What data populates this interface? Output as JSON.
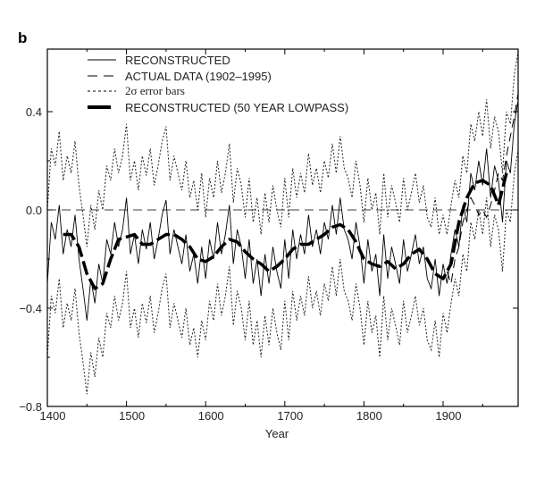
{
  "chart_data": {
    "type": "line",
    "panel_label": "b",
    "xlabel": "Year",
    "ylabel": "",
    "xlim": [
      1400,
      1995
    ],
    "ylim": [
      -0.8,
      0.65
    ],
    "xticks": [
      1400,
      1500,
      1600,
      1700,
      1800,
      1900
    ],
    "xtick_labels": [
      "1400",
      "1500",
      "1600",
      "1700",
      "1800",
      "1900"
    ],
    "yticks": [
      0.4,
      0.0,
      -0.4,
      -0.8
    ],
    "ytick_labels": [
      "0.4",
      "0.0",
      "−0.4",
      "−0.8"
    ],
    "grid": false,
    "legend_position": "top-left",
    "legend": [
      {
        "label": "RECONSTRUCTED",
        "style": "thin-solid"
      },
      {
        "label": "ACTUAL DATA (1902–1995)",
        "style": "long-dash"
      },
      {
        "label": "2σ error bars",
        "style": "dotted"
      },
      {
        "label": "RECONSTRUCTED (50 YEAR LOWPASS)",
        "style": "thick-dash"
      }
    ],
    "reconstructed": {
      "start": 1400,
      "step": 5,
      "values": [
        -0.3,
        -0.05,
        -0.12,
        0.02,
        -0.18,
        -0.08,
        -0.15,
        -0.02,
        -0.2,
        -0.32,
        -0.45,
        -0.28,
        -0.38,
        -0.22,
        -0.3,
        -0.12,
        -0.18,
        -0.05,
        -0.15,
        -0.08,
        0.05,
        -0.18,
        -0.1,
        -0.22,
        -0.08,
        -0.16,
        -0.05,
        -0.2,
        -0.12,
        -0.02,
        0.04,
        -0.18,
        -0.08,
        -0.15,
        -0.22,
        -0.1,
        -0.25,
        -0.18,
        -0.3,
        -0.15,
        -0.28,
        -0.12,
        -0.2,
        -0.05,
        -0.18,
        -0.1,
        0.02,
        -0.22,
        -0.08,
        -0.15,
        -0.28,
        -0.12,
        -0.3,
        -0.2,
        -0.35,
        -0.18,
        -0.3,
        -0.15,
        -0.25,
        -0.32,
        -0.12,
        -0.28,
        -0.08,
        -0.2,
        -0.1,
        -0.18,
        -0.02,
        -0.15,
        -0.08,
        -0.18,
        -0.05,
        -0.12,
        0.02,
        -0.1,
        0.05,
        -0.08,
        -0.12,
        -0.2,
        -0.05,
        -0.15,
        -0.3,
        -0.12,
        -0.25,
        -0.18,
        -0.35,
        -0.1,
        -0.28,
        -0.15,
        -0.22,
        -0.3,
        -0.12,
        -0.25,
        -0.18,
        -0.1,
        -0.22,
        -0.15,
        -0.28,
        -0.32,
        -0.2,
        -0.35,
        -0.22,
        -0.3,
        -0.18,
        -0.08,
        -0.15,
        0.02,
        -0.05,
        0.15,
        0.08,
        0.2,
        0.1,
        0.25,
        0.05,
        0.18,
        0.12,
        -0.05,
        0.2,
        0.15,
        0.35,
        0.45
      ]
    },
    "error_sigma2": [
      {
        "from": 1400,
        "to": 1600,
        "value": 0.3
      },
      {
        "from": 1600,
        "to": 1900,
        "value": 0.25
      },
      {
        "from": 1900,
        "to": 1995,
        "value": 0.2
      }
    ],
    "actual": {
      "start": 1905,
      "step": 5,
      "values": [
        -0.25,
        -0.3,
        -0.2,
        -0.15,
        -0.05,
        0.0,
        0.05,
        0.02,
        -0.02,
        0.0,
        -0.03,
        0.02,
        0.08,
        0.15,
        0.12,
        0.22,
        0.3,
        0.38,
        0.48
      ]
    },
    "lowpass": {
      "years": [
        1420,
        1430,
        1440,
        1450,
        1460,
        1470,
        1480,
        1490,
        1500,
        1510,
        1520,
        1530,
        1540,
        1550,
        1560,
        1570,
        1580,
        1590,
        1600,
        1610,
        1620,
        1630,
        1640,
        1650,
        1660,
        1670,
        1680,
        1690,
        1700,
        1710,
        1720,
        1730,
        1740,
        1750,
        1760,
        1770,
        1780,
        1790,
        1800,
        1810,
        1820,
        1830,
        1840,
        1850,
        1860,
        1870,
        1880,
        1890,
        1900,
        1910,
        1920,
        1930,
        1940,
        1950,
        1960,
        1970,
        1980
      ],
      "values": [
        -0.1,
        -0.1,
        -0.15,
        -0.26,
        -0.32,
        -0.3,
        -0.2,
        -0.12,
        -0.11,
        -0.1,
        -0.14,
        -0.14,
        -0.12,
        -0.1,
        -0.1,
        -0.12,
        -0.15,
        -0.2,
        -0.21,
        -0.19,
        -0.15,
        -0.12,
        -0.13,
        -0.17,
        -0.2,
        -0.22,
        -0.25,
        -0.23,
        -0.2,
        -0.16,
        -0.14,
        -0.14,
        -0.12,
        -0.1,
        -0.07,
        -0.06,
        -0.08,
        -0.13,
        -0.2,
        -0.22,
        -0.23,
        -0.21,
        -0.24,
        -0.22,
        -0.18,
        -0.16,
        -0.2,
        -0.26,
        -0.28,
        -0.22,
        -0.05,
        0.05,
        0.11,
        0.12,
        0.1,
        0.02,
        0.15
      ]
    }
  }
}
